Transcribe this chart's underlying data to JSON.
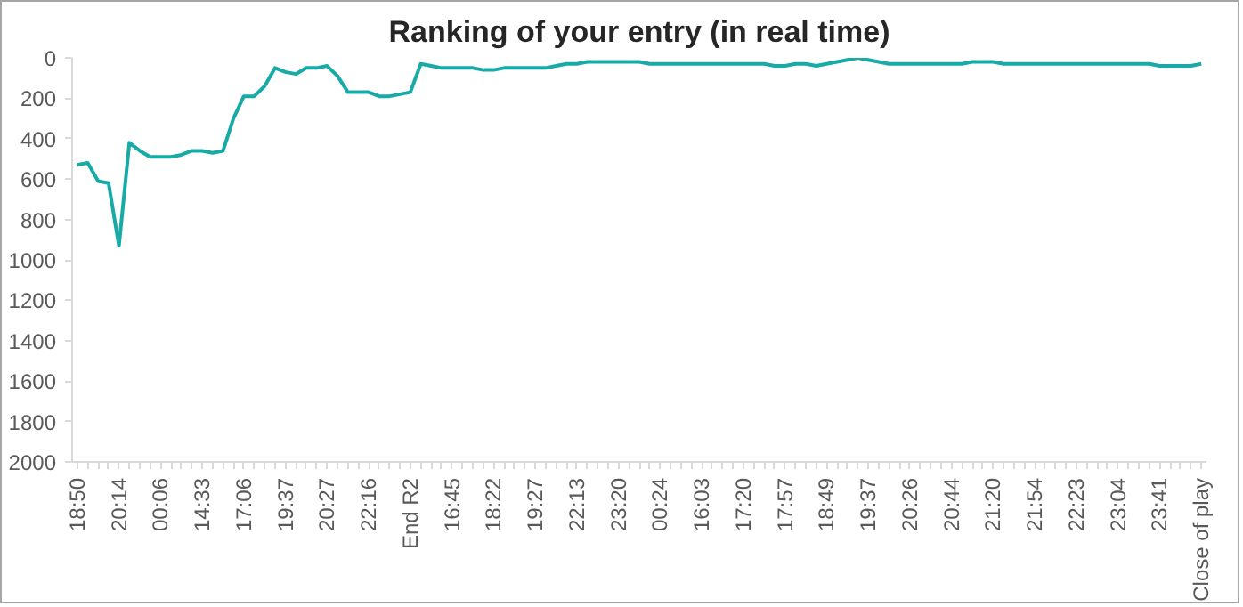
{
  "chart_data": {
    "type": "line",
    "title": "Ranking of your entry (in real time)",
    "categories": [
      "18:50",
      null,
      null,
      null,
      "20:14",
      null,
      null,
      null,
      "00:06",
      null,
      null,
      null,
      "14:33",
      null,
      null,
      null,
      "17:06",
      null,
      null,
      null,
      "19:37",
      null,
      null,
      null,
      "20:27",
      null,
      null,
      null,
      "22:16",
      null,
      null,
      null,
      "End R2",
      null,
      null,
      null,
      "16:45",
      null,
      null,
      null,
      "18:22",
      null,
      null,
      null,
      "19:27",
      null,
      null,
      null,
      "22:13",
      null,
      null,
      null,
      "23:20",
      null,
      null,
      null,
      "00:24",
      null,
      null,
      null,
      "16:03",
      null,
      null,
      null,
      "17:20",
      null,
      null,
      null,
      "17:57",
      null,
      null,
      null,
      "18:49",
      null,
      null,
      null,
      "19:37",
      null,
      null,
      null,
      "20:26",
      null,
      null,
      null,
      "20:44",
      null,
      null,
      null,
      "21:20",
      null,
      null,
      null,
      "21:54",
      null,
      null,
      null,
      "22:23",
      null,
      null,
      null,
      "23:04",
      null,
      null,
      null,
      "23:41",
      null,
      null,
      null,
      "Close of play"
    ],
    "series": [
      {
        "color": "#17aaa6",
        "values": [
          530,
          520,
          610,
          620,
          930,
          420,
          460,
          490,
          490,
          490,
          480,
          460,
          460,
          470,
          460,
          300,
          190,
          190,
          140,
          50,
          70,
          80,
          50,
          50,
          40,
          90,
          170,
          170,
          170,
          190,
          190,
          180,
          170,
          30,
          40,
          50,
          50,
          50,
          50,
          60,
          60,
          50,
          50,
          50,
          50,
          50,
          40,
          30,
          30,
          20,
          20,
          20,
          20,
          20,
          20,
          30,
          30,
          30,
          30,
          30,
          30,
          30,
          30,
          30,
          30,
          30,
          30,
          40,
          40,
          30,
          30,
          40,
          30,
          20,
          10,
          0,
          10,
          20,
          30,
          30,
          30,
          30,
          30,
          30,
          30,
          30,
          20,
          20,
          20,
          30,
          30,
          30,
          30,
          30,
          30,
          30,
          30,
          30,
          30,
          30,
          30,
          30,
          30,
          30,
          40,
          40,
          40,
          40,
          30
        ]
      }
    ],
    "ylim": [
      2000,
      0
    ],
    "yticks": [
      0,
      200,
      400,
      600,
      800,
      1000,
      1200,
      1400,
      1600,
      1800,
      2000
    ],
    "grid": false,
    "marker": "none",
    "line_style": "solid"
  }
}
